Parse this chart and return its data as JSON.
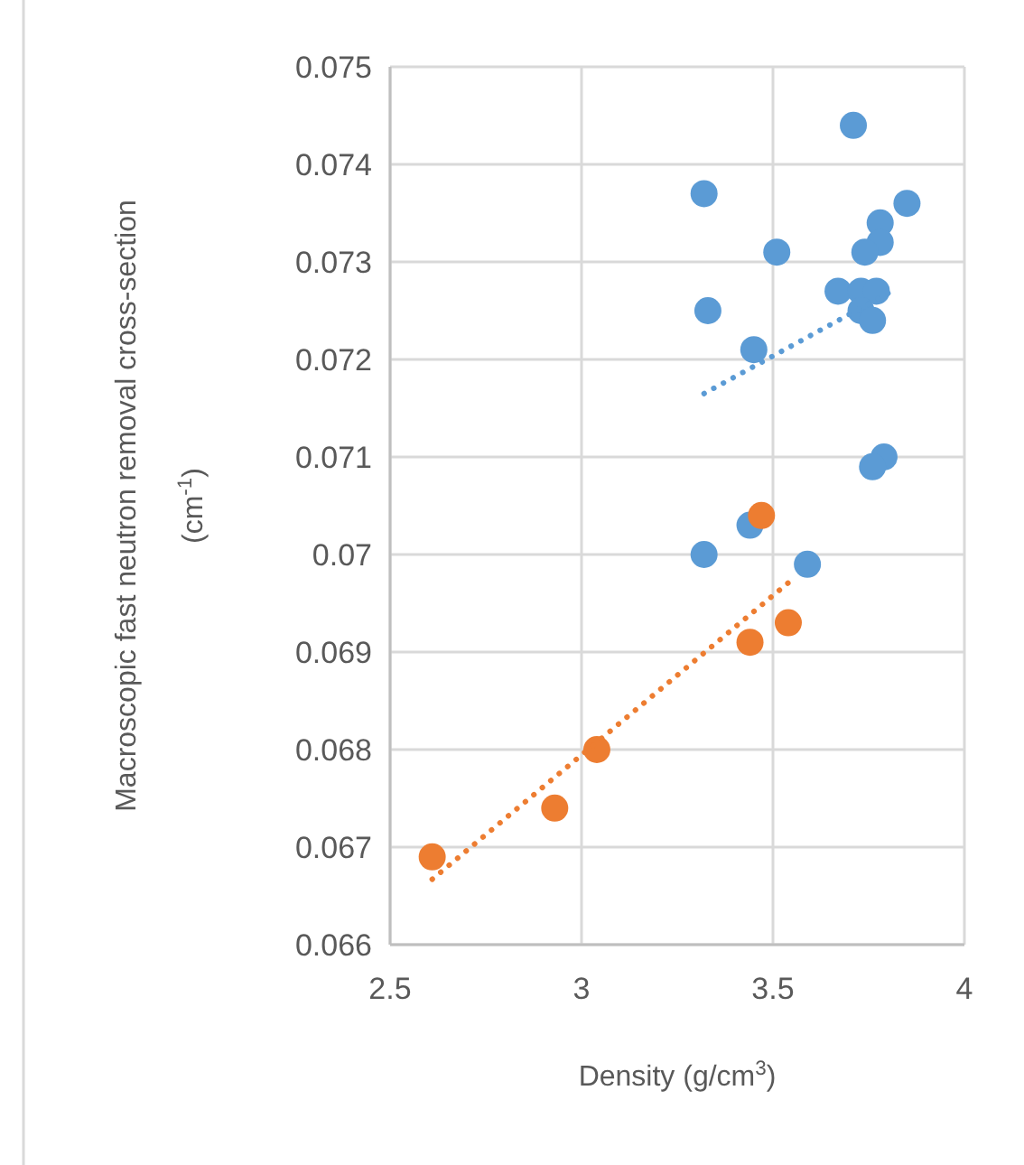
{
  "chart_data": {
    "type": "scatter",
    "xlabel": "Density (g/cm$^{3}$)",
    "ylabel": "Macroscopic fast neutron removal cross-section (cm$^{-1}$)",
    "xlim": [
      2.5,
      4
    ],
    "xticks": [
      2.5,
      3,
      3.5,
      4
    ],
    "ylim": [
      0.066,
      0.075
    ],
    "yticks": [
      0.066,
      0.067,
      0.068,
      0.069,
      0.07,
      0.071,
      0.072,
      0.073,
      0.074,
      0.075
    ],
    "grid": true,
    "series": [
      {
        "color": "#5b9bd5",
        "marker": "circle",
        "x": [
          3.71,
          3.32,
          3.85,
          3.78,
          3.78,
          3.74,
          3.51,
          3.67,
          3.73,
          3.77,
          3.73,
          3.76,
          3.33,
          3.45,
          3.79,
          3.76,
          3.44,
          3.32,
          3.59
        ],
        "values": [
          0.0744,
          0.0737,
          0.0736,
          0.0734,
          0.0732,
          0.0731,
          0.0731,
          0.0727,
          0.0727,
          0.0727,
          0.0725,
          0.0724,
          0.0725,
          0.0721,
          0.071,
          0.0709,
          0.0703,
          0.07,
          0.0699
        ]
      },
      {
        "color": "#ed7d31",
        "marker": "circle",
        "x": [
          3.47,
          3.44,
          3.54,
          3.04,
          2.93,
          2.61
        ],
        "values": [
          0.0704,
          0.0691,
          0.0693,
          0.068,
          0.0674,
          0.0669
        ]
      },
      {
        "type": "line",
        "marker": "none",
        "line_style": "dotted",
        "color": "#5b9bd5",
        "x": [
          3.32,
          3.82
        ],
        "values": [
          0.07165,
          0.07272
        ]
      },
      {
        "type": "line",
        "marker": "none",
        "line_style": "dotted",
        "color": "#ed7d31",
        "x": [
          2.61,
          3.54
        ],
        "values": [
          0.06667,
          0.06971
        ]
      }
    ]
  }
}
